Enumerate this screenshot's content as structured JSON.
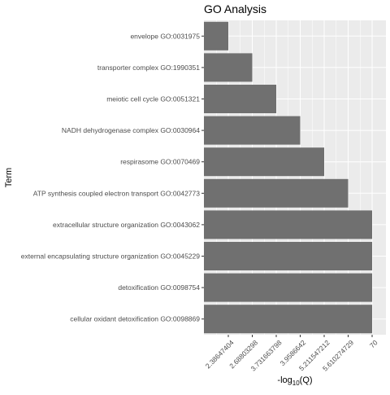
{
  "chart_data": {
    "type": "bar",
    "orientation": "horizontal",
    "title": "GO Analysis",
    "xlabel": "-log10(Q)",
    "ylabel": "Term",
    "x_tick_labels": [
      "2.38647404",
      "2.68803298",
      "3.731663798",
      "3.9586642",
      "5.211547212",
      "5.610274729",
      "70"
    ],
    "categories": [
      "envelope GO:0031975",
      "transporter complex GO:1990351",
      "meiotic cell cycle GO:0051321",
      "NADH dehydrogenase complex GO:0030964",
      "respirasome GO:0070469",
      "ATP synthesis coupled electron transport GO:0042773",
      "extracellular structure organization GO:0043062",
      "external encapsulating structure organization GO:0045229",
      "detoxification GO:0098754",
      "cellular oxidant detoxification GO:0098869"
    ],
    "values": [
      "2.38647404",
      "2.68803298",
      "3.731663798",
      "3.9586642",
      "5.211547212",
      "5.610274729",
      "70",
      "70",
      "70",
      "70"
    ],
    "grid": true,
    "legend": "none",
    "colors": {
      "bar": "#707070",
      "panel": "#ebebeb",
      "grid": "#ffffff",
      "text": "#4d4d4d",
      "title": "#000000"
    }
  }
}
